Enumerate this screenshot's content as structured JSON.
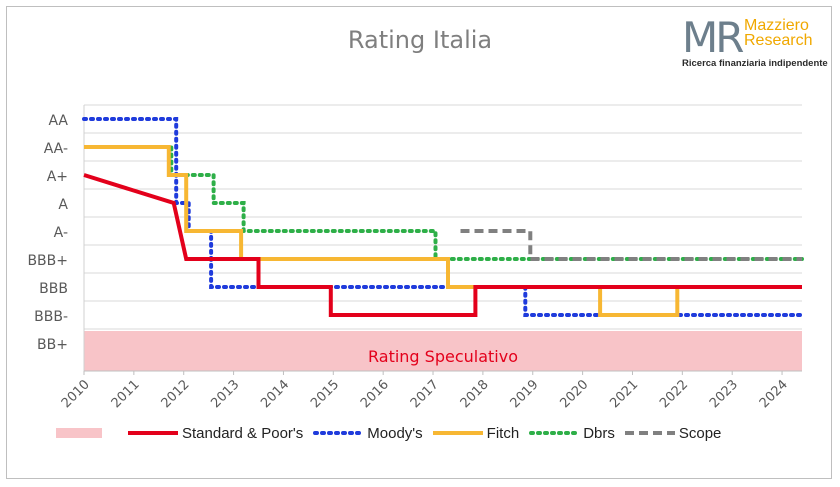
{
  "chart_data": {
    "type": "line",
    "title": "Rating Italia",
    "xlim": [
      2010,
      2024.4
    ],
    "x_ticks": [
      "2010",
      "2011",
      "2012",
      "2013",
      "2014",
      "2015",
      "2016",
      "2017",
      "2018",
      "2019",
      "2020",
      "2021",
      "2022",
      "2023",
      "2024"
    ],
    "y_levels": [
      "BB+",
      "BBB-",
      "BBB",
      "BBB+",
      "A-",
      "A",
      "A+",
      "AA-",
      "AA"
    ],
    "grid": true,
    "zone": {
      "label": "Rating Speculativo",
      "color": "#f8c4c8",
      "text_color": "#e3001b",
      "from": "BB+"
    },
    "series": [
      {
        "name": "Standard & Poor's",
        "color": "#e3001b",
        "dash": "solid",
        "points": [
          [
            2010,
            "A+"
          ],
          [
            2011.8,
            "A"
          ],
          [
            2012.05,
            "BBB+"
          ],
          [
            2013.5,
            "BBB+"
          ],
          [
            2013.5,
            "BBB"
          ],
          [
            2014.95,
            "BBB"
          ],
          [
            2014.95,
            "BBB-"
          ],
          [
            2017.85,
            "BBB-"
          ],
          [
            2017.85,
            "BBB"
          ],
          [
            2024.4,
            "BBB"
          ]
        ]
      },
      {
        "name": "Moody's",
        "color": "#1f3bdc",
        "dash": "dot",
        "points": [
          [
            2010,
            "AA"
          ],
          [
            2011.85,
            "AA"
          ],
          [
            2011.85,
            "A"
          ],
          [
            2012.1,
            "A"
          ],
          [
            2012.1,
            "A-"
          ],
          [
            2012.55,
            "A-"
          ],
          [
            2012.55,
            "BBB"
          ],
          [
            2018.85,
            "BBB"
          ],
          [
            2018.85,
            "BBB-"
          ],
          [
            2024.4,
            "BBB-"
          ]
        ]
      },
      {
        "name": "Fitch",
        "color": "#f7b733",
        "dash": "solid",
        "points": [
          [
            2010,
            "AA-"
          ],
          [
            2011.7,
            "AA-"
          ],
          [
            2011.7,
            "A+"
          ],
          [
            2012.05,
            "A+"
          ],
          [
            2012.05,
            "A-"
          ],
          [
            2013.15,
            "A-"
          ],
          [
            2013.15,
            "BBB+"
          ],
          [
            2017.3,
            "BBB+"
          ],
          [
            2017.3,
            "BBB"
          ],
          [
            2020.35,
            "BBB"
          ],
          [
            2020.35,
            "BBB-"
          ],
          [
            2021.9,
            "BBB-"
          ],
          [
            2021.9,
            "BBB"
          ],
          [
            2024.4,
            "BBB"
          ]
        ]
      },
      {
        "name": "Dbrs",
        "color": "#2eaf48",
        "dash": "dot",
        "points": [
          [
            2011.2,
            "AA-"
          ],
          [
            2011.75,
            "AA-"
          ],
          [
            2011.75,
            "A+"
          ],
          [
            2012.6,
            "A+"
          ],
          [
            2012.6,
            "A"
          ],
          [
            2013.2,
            "A"
          ],
          [
            2013.2,
            "A-"
          ],
          [
            2017.05,
            "A-"
          ],
          [
            2017.05,
            "BBB+"
          ],
          [
            2024.4,
            "BBB+"
          ]
        ]
      },
      {
        "name": "Scope",
        "color": "#808080",
        "dash": "dash",
        "points": [
          [
            2017.55,
            "A-"
          ],
          [
            2018.95,
            "A-"
          ],
          [
            2018.95,
            "BBB+"
          ],
          [
            2024.4,
            "BBB+"
          ]
        ]
      }
    ]
  },
  "logo": {
    "mark": "MR",
    "name_line1": "Mazziero",
    "name_line2": "Research",
    "tagline": "Ricerca finanziaria indipendente"
  }
}
